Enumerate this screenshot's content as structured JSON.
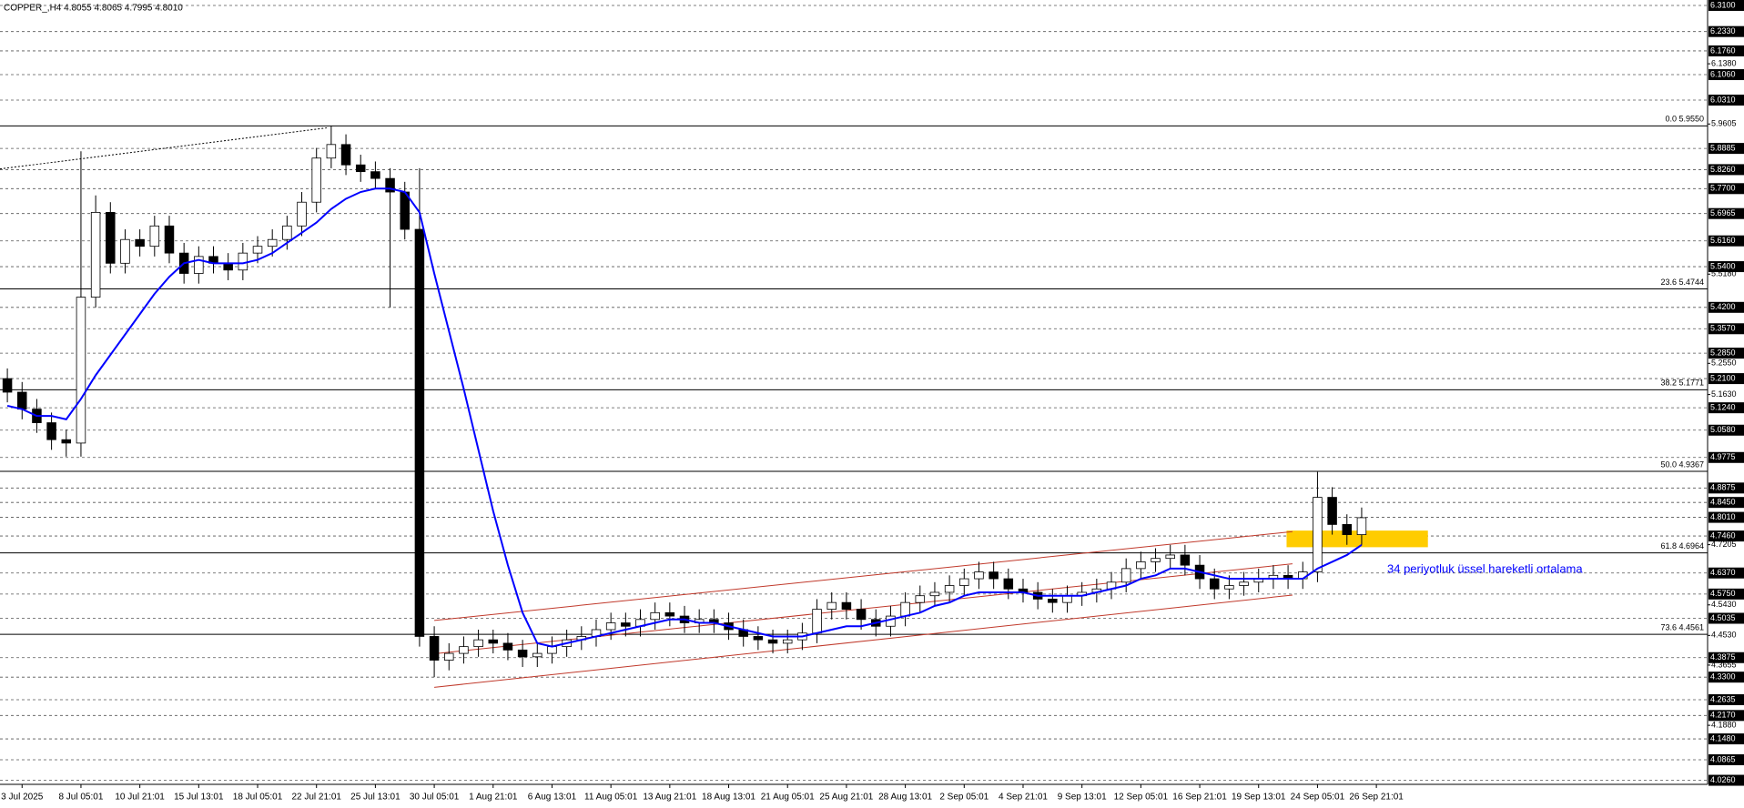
{
  "chart_data": {
    "type": "candlestick",
    "title": "COPPER_,H4  4.8055 4.8065 4.7995 4.8010",
    "annotation": "34 periyotluk üssel hareketli ortalama",
    "annotation_color": "#0000ff",
    "xlim": [
      -0.5,
      115.5
    ],
    "ylim": [
      4.014,
      6.326
    ],
    "xticks": [
      {
        "value": 1,
        "label": "3 Jul 2025"
      },
      {
        "value": 5,
        "label": "8 Jul 05:01"
      },
      {
        "value": 9,
        "label": "10 Jul 21:01"
      },
      {
        "value": 13,
        "label": "15 Jul 13:01"
      },
      {
        "value": 17,
        "label": "18 Jul 05:01"
      },
      {
        "value": 21,
        "label": "22 Jul 21:01"
      },
      {
        "value": 25,
        "label": "25 Jul 13:01"
      },
      {
        "value": 29,
        "label": "30 Jul 05:01"
      },
      {
        "value": 33,
        "label": "1 Aug 21:01"
      },
      {
        "value": 37,
        "label": "6 Aug 13:01"
      },
      {
        "value": 41,
        "label": "11 Aug 05:01"
      },
      {
        "value": 45,
        "label": "13 Aug 21:01"
      },
      {
        "value": 49,
        "label": "18 Aug 13:01"
      },
      {
        "value": 53,
        "label": "21 Aug 05:01"
      },
      {
        "value": 57,
        "label": "25 Aug 21:01"
      },
      {
        "value": 61,
        "label": "28 Aug 13:01"
      },
      {
        "value": 65,
        "label": "2 Sep 05:01"
      },
      {
        "value": 69,
        "label": "4 Sep 21:01"
      },
      {
        "value": 73,
        "label": "9 Sep 13:01"
      },
      {
        "value": 77,
        "label": "12 Sep 05:01"
      },
      {
        "value": 81,
        "label": "16 Sep 21:01"
      },
      {
        "value": 85,
        "label": "19 Sep 13:01"
      },
      {
        "value": 89,
        "label": "24 Sep 05:01"
      },
      {
        "value": 93,
        "label": "26 Sep 21:01"
      }
    ],
    "yticks": [
      {
        "value": 6.138,
        "label": "6.1380"
      },
      {
        "value": 5.9605,
        "label": "5.9605"
      },
      {
        "value": 5.518,
        "label": "5.5180"
      },
      {
        "value": 5.255,
        "label": "5.2550"
      },
      {
        "value": 5.163,
        "label": "5.1630"
      },
      {
        "value": 4.7205,
        "label": "4.7205"
      },
      {
        "value": 4.543,
        "label": "4.5430"
      },
      {
        "value": 4.453,
        "label": "4.4530"
      },
      {
        "value": 4.3655,
        "label": "4.3655"
      },
      {
        "value": 4.188,
        "label": "4.1880"
      }
    ],
    "levels": [
      {
        "value": 6.31,
        "label": "6.3100"
      },
      {
        "value": 6.233,
        "label": "6.2330"
      },
      {
        "value": 6.176,
        "label": "6.1760"
      },
      {
        "value": 6.106,
        "label": "6.1060"
      },
      {
        "value": 6.031,
        "label": "6.0310"
      },
      {
        "value": 5.8885,
        "label": "5.8885"
      },
      {
        "value": 5.826,
        "label": "5.8260"
      },
      {
        "value": 5.77,
        "label": "5.7700"
      },
      {
        "value": 5.6965,
        "label": "5.6965"
      },
      {
        "value": 5.616,
        "label": "5.6160"
      },
      {
        "value": 5.54,
        "label": "5.5400"
      },
      {
        "value": 5.42,
        "label": "5.4200"
      },
      {
        "value": 5.357,
        "label": "5.3570"
      },
      {
        "value": 5.285,
        "label": "5.2850"
      },
      {
        "value": 5.21,
        "label": "5.2100"
      },
      {
        "value": 5.124,
        "label": "5.1240"
      },
      {
        "value": 5.058,
        "label": "5.0580"
      },
      {
        "value": 4.9775,
        "label": "4.9775"
      },
      {
        "value": 4.8875,
        "label": "4.8875"
      },
      {
        "value": 4.845,
        "label": "4.8450"
      },
      {
        "value": 4.801,
        "label": "4.8010"
      },
      {
        "value": 4.746,
        "label": "4.7460"
      },
      {
        "value": 4.637,
        "label": "4.6370"
      },
      {
        "value": 4.575,
        "label": "4.5750"
      },
      {
        "value": 4.5035,
        "label": "4.5035"
      },
      {
        "value": 4.3875,
        "label": "4.3875"
      },
      {
        "value": 4.33,
        "label": "4.3300"
      },
      {
        "value": 4.2635,
        "label": "4.2635"
      },
      {
        "value": 4.217,
        "label": "4.2170"
      },
      {
        "value": 4.148,
        "label": "4.1480"
      },
      {
        "value": 4.0865,
        "label": "4.0865"
      },
      {
        "value": 4.026,
        "label": "4.0260"
      }
    ],
    "fib_levels": [
      {
        "value": 5.955,
        "label": "0.0 5.9550"
      },
      {
        "value": 5.4744,
        "label": "23.6 5.4744"
      },
      {
        "value": 5.1771,
        "label": "38.2 5.1771"
      },
      {
        "value": 4.9367,
        "label": "50.0 4.9367"
      },
      {
        "value": 4.6964,
        "label": "61.8 4.6964"
      },
      {
        "value": 4.4561,
        "label": "73.6 4.4561"
      }
    ],
    "open": [
      5.21,
      5.17,
      5.12,
      5.08,
      5.03,
      5.02,
      5.45,
      5.7,
      5.55,
      5.62,
      5.6,
      5.66,
      5.58,
      5.52,
      5.57,
      5.55,
      5.53,
      5.58,
      5.6,
      5.62,
      5.66,
      5.73,
      5.86,
      5.9,
      5.84,
      5.82,
      5.8,
      5.76,
      5.65,
      4.45,
      4.38,
      4.4,
      4.42,
      4.44,
      4.43,
      4.41,
      4.39,
      4.4,
      4.42,
      4.44,
      4.45,
      4.47,
      4.49,
      4.48,
      4.5,
      4.52,
      4.51,
      4.49,
      4.5,
      4.49,
      4.47,
      4.45,
      4.44,
      4.43,
      4.44,
      4.46,
      4.53,
      4.55,
      4.53,
      4.5,
      4.48,
      4.51,
      4.55,
      4.57,
      4.58,
      4.6,
      4.62,
      4.64,
      4.62,
      4.59,
      4.58,
      4.56,
      4.55,
      4.57,
      4.58,
      4.59,
      4.61,
      4.65,
      4.67,
      4.68,
      4.69,
      4.66,
      4.62,
      4.59,
      4.6,
      4.61,
      4.62,
      4.63,
      4.62,
      4.64,
      4.86,
      4.78,
      4.75
    ],
    "high": [
      5.24,
      5.2,
      5.15,
      5.11,
      5.06,
      5.88,
      5.75,
      5.73,
      5.65,
      5.65,
      5.69,
      5.69,
      5.61,
      5.6,
      5.6,
      5.58,
      5.61,
      5.63,
      5.65,
      5.69,
      5.76,
      5.89,
      5.955,
      5.93,
      5.87,
      5.85,
      5.83,
      5.79,
      5.83,
      4.48,
      4.43,
      4.45,
      4.47,
      4.47,
      4.46,
      4.44,
      4.43,
      4.45,
      4.47,
      4.48,
      4.5,
      4.52,
      4.52,
      4.53,
      4.55,
      4.55,
      4.54,
      4.53,
      4.53,
      4.52,
      4.5,
      4.48,
      4.47,
      4.47,
      4.49,
      4.56,
      4.58,
      4.58,
      4.56,
      4.53,
      4.54,
      4.58,
      4.6,
      4.61,
      4.63,
      4.65,
      4.67,
      4.67,
      4.65,
      4.62,
      4.61,
      4.59,
      4.6,
      4.61,
      4.62,
      4.64,
      4.68,
      4.7,
      4.71,
      4.72,
      4.72,
      4.69,
      4.65,
      4.63,
      4.64,
      4.65,
      4.66,
      4.66,
      4.67,
      4.935,
      4.89,
      4.81,
      4.83
    ],
    "low": [
      5.14,
      5.09,
      5.05,
      5.0,
      4.98,
      4.98,
      5.42,
      5.52,
      5.52,
      5.57,
      5.57,
      5.55,
      5.49,
      5.49,
      5.52,
      5.5,
      5.5,
      5.55,
      5.57,
      5.59,
      5.63,
      5.7,
      5.83,
      5.81,
      5.79,
      5.77,
      5.42,
      5.62,
      4.42,
      4.33,
      4.35,
      4.37,
      4.39,
      4.4,
      4.38,
      4.36,
      4.36,
      4.37,
      4.39,
      4.41,
      4.42,
      4.44,
      4.45,
      4.45,
      4.47,
      4.48,
      4.46,
      4.46,
      4.46,
      4.44,
      4.42,
      4.41,
      4.4,
      4.4,
      4.41,
      4.43,
      4.5,
      4.5,
      4.47,
      4.45,
      4.45,
      4.48,
      4.52,
      4.54,
      4.55,
      4.57,
      4.59,
      4.59,
      4.56,
      4.55,
      4.53,
      4.52,
      4.52,
      4.54,
      4.55,
      4.56,
      4.58,
      4.62,
      4.64,
      4.65,
      4.63,
      4.59,
      4.56,
      4.56,
      4.57,
      4.58,
      4.59,
      4.59,
      4.59,
      4.61,
      4.75,
      4.72,
      4.72
    ],
    "close": [
      5.17,
      5.12,
      5.08,
      5.03,
      5.02,
      5.45,
      5.7,
      5.55,
      5.62,
      5.6,
      5.66,
      5.58,
      5.52,
      5.57,
      5.55,
      5.53,
      5.58,
      5.6,
      5.62,
      5.66,
      5.73,
      5.86,
      5.9,
      5.84,
      5.82,
      5.8,
      5.76,
      5.65,
      4.45,
      4.38,
      4.4,
      4.42,
      4.44,
      4.43,
      4.41,
      4.39,
      4.4,
      4.42,
      4.44,
      4.45,
      4.47,
      4.49,
      4.48,
      4.5,
      4.52,
      4.51,
      4.49,
      4.5,
      4.49,
      4.47,
      4.45,
      4.44,
      4.43,
      4.44,
      4.46,
      4.53,
      4.55,
      4.53,
      4.5,
      4.48,
      4.51,
      4.55,
      4.57,
      4.58,
      4.6,
      4.62,
      4.64,
      4.62,
      4.59,
      4.58,
      4.56,
      4.55,
      4.57,
      4.58,
      4.59,
      4.61,
      4.65,
      4.67,
      4.68,
      4.69,
      4.66,
      4.62,
      4.59,
      4.6,
      4.61,
      4.62,
      4.63,
      4.62,
      4.64,
      4.86,
      4.78,
      4.75,
      4.8
    ],
    "ema": [
      5.13,
      5.12,
      5.1,
      5.1,
      5.09,
      5.15,
      5.22,
      5.28,
      5.34,
      5.4,
      5.46,
      5.51,
      5.55,
      5.56,
      5.55,
      5.55,
      5.55,
      5.56,
      5.58,
      5.61,
      5.64,
      5.67,
      5.71,
      5.74,
      5.76,
      5.77,
      5.77,
      5.76,
      5.7,
      5.52,
      5.35,
      5.18,
      5.0,
      4.82,
      4.66,
      4.52,
      4.43,
      4.42,
      4.43,
      4.44,
      4.45,
      4.46,
      4.47,
      4.48,
      4.49,
      4.5,
      4.5,
      4.49,
      4.49,
      4.48,
      4.47,
      4.46,
      4.45,
      4.45,
      4.45,
      4.46,
      4.47,
      4.48,
      4.48,
      4.49,
      4.5,
      4.51,
      4.52,
      4.54,
      4.55,
      4.57,
      4.58,
      4.58,
      4.58,
      4.58,
      4.57,
      4.57,
      4.57,
      4.57,
      4.58,
      4.59,
      4.6,
      4.62,
      4.63,
      4.65,
      4.65,
      4.64,
      4.63,
      4.62,
      4.62,
      4.62,
      4.62,
      4.62,
      4.62,
      4.65,
      4.67,
      4.69,
      4.72
    ],
    "ema_color": "#0000ff",
    "trendlines": [
      {
        "x": [
          29.0,
          87.3
        ],
        "y": [
          4.497,
          4.759
        ],
        "color": "#c0392b",
        "style": "solid"
      },
      {
        "x": [
          29.0,
          87.3
        ],
        "y": [
          4.399,
          4.664
        ],
        "color": "#c0392b",
        "style": "solid"
      },
      {
        "x": [
          29.0,
          87.3
        ],
        "y": [
          4.3,
          4.572
        ],
        "color": "#c0392b",
        "style": "solid"
      },
      {
        "x": [
          -0.5,
          21.7
        ],
        "y": [
          5.828,
          5.949
        ],
        "color": "#000000",
        "style": "dotted"
      }
    ],
    "zone": {
      "x": [
        86.9,
        96.5
      ],
      "y": [
        4.713,
        4.762
      ],
      "color": "#ffcc00"
    }
  }
}
